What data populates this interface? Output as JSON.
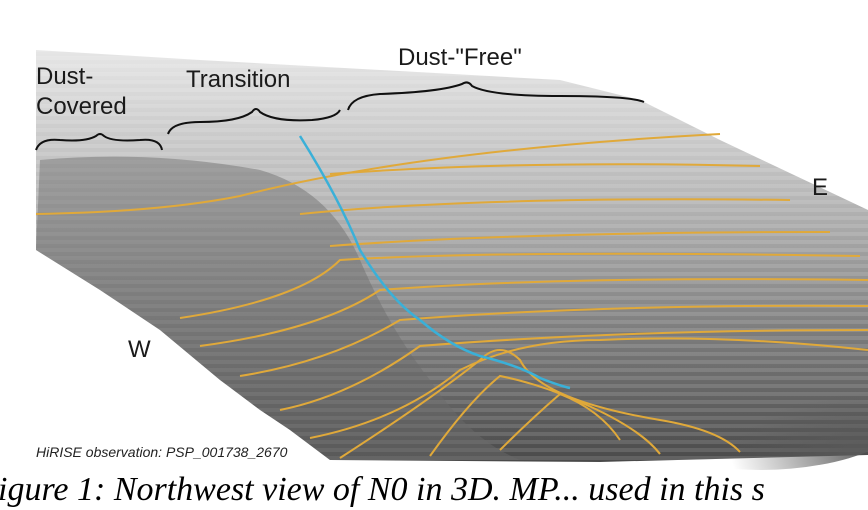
{
  "labels": {
    "dust_covered": "Dust-Covered",
    "transition": "Transition",
    "dust_free": "Dust-\"Free\"",
    "east": "E",
    "west": "W"
  },
  "source_note": "HiRISE observation: PSP_001738_2670",
  "caption": "igure 1: Northwest view of N0 in 3D. MP... used in this s",
  "colors": {
    "contour_lines": "#e0a93a",
    "profile_line": "#3ab0d8",
    "terrain_light": "#d9d9d9",
    "terrain_dark": "#3c3c3c",
    "brace_lines": "#111111"
  }
}
